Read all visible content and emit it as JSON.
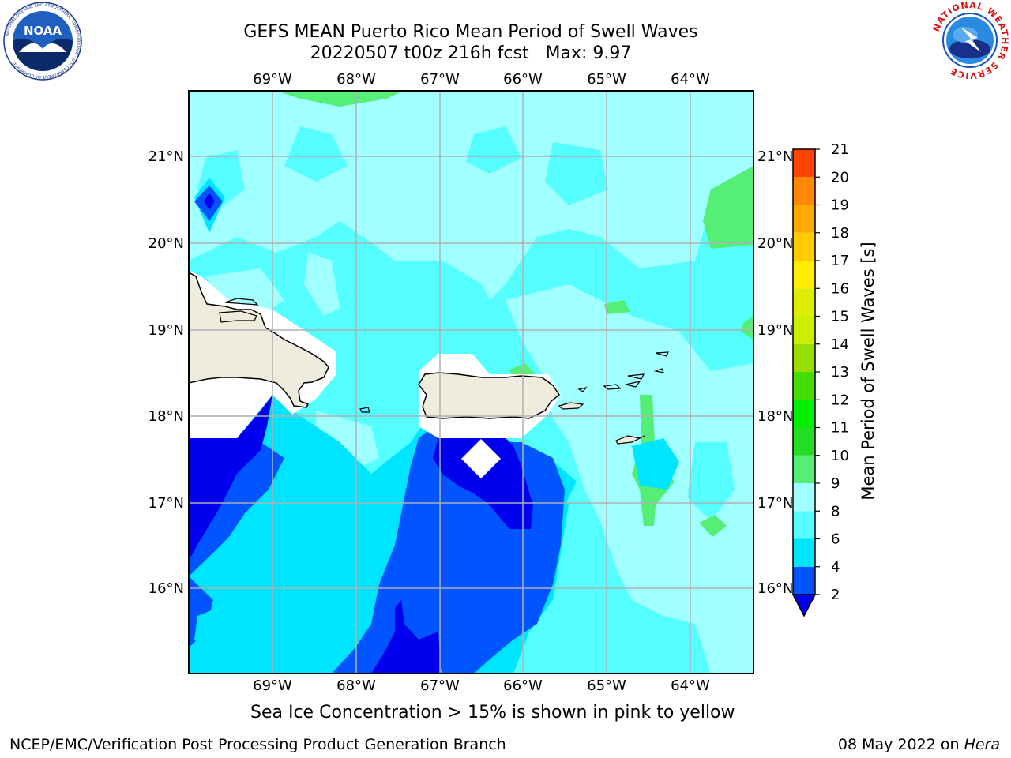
{
  "title": {
    "line1": "GEFS MEAN Puerto Rico Mean Period of Swell Waves",
    "line2": "20220507 t00z 216h fcst   Max: 9.97"
  },
  "logos": {
    "noaa": {
      "text": "NOAA",
      "ring_text": "NATIONAL OCEANIC AND ATMOSPHERIC ADMINISTRATION · U.S. DEPARTMENT OF COMMERCE"
    },
    "nws": {
      "ring_text": "NATIONAL WEATHER SERVICE"
    }
  },
  "map": {
    "lon_labels": [
      "69°W",
      "68°W",
      "67°W",
      "66°W",
      "65°W",
      "64°W"
    ],
    "lat_labels": [
      "21°N",
      "20°N",
      "19°N",
      "18°N",
      "17°N",
      "16°N"
    ],
    "colors": {
      "land": "#eeeddd",
      "no_data": "#ffffff",
      "grid": "#b0b0b0"
    }
  },
  "colorbar": {
    "label": "Mean Period of Swell Waves [s]",
    "ticks": [
      "2",
      "4",
      "6",
      "8",
      "9",
      "10",
      "11",
      "12",
      "13",
      "14",
      "15",
      "16",
      "17",
      "18",
      "19",
      "20",
      "21"
    ],
    "colors": [
      "#0055ff",
      "#00e5ff",
      "#55ffff",
      "#a0ffff",
      "#55ee77",
      "#22dd22",
      "#00ee00",
      "#44dd00",
      "#99dd00",
      "#ccee00",
      "#ddee00",
      "#ffee00",
      "#ffcc00",
      "#ffaa00",
      "#ff8800",
      "#ff4400",
      "#ff2200",
      "#ff0000"
    ],
    "extend_color": "#0000ee"
  },
  "footer": {
    "caption": "Sea Ice Concentration > 15% is shown in pink to yellow",
    "credit": "NCEP/EMC/Verification Post Processing Product Generation Branch",
    "date": "08 May 2022 on",
    "machine": "Hera"
  }
}
